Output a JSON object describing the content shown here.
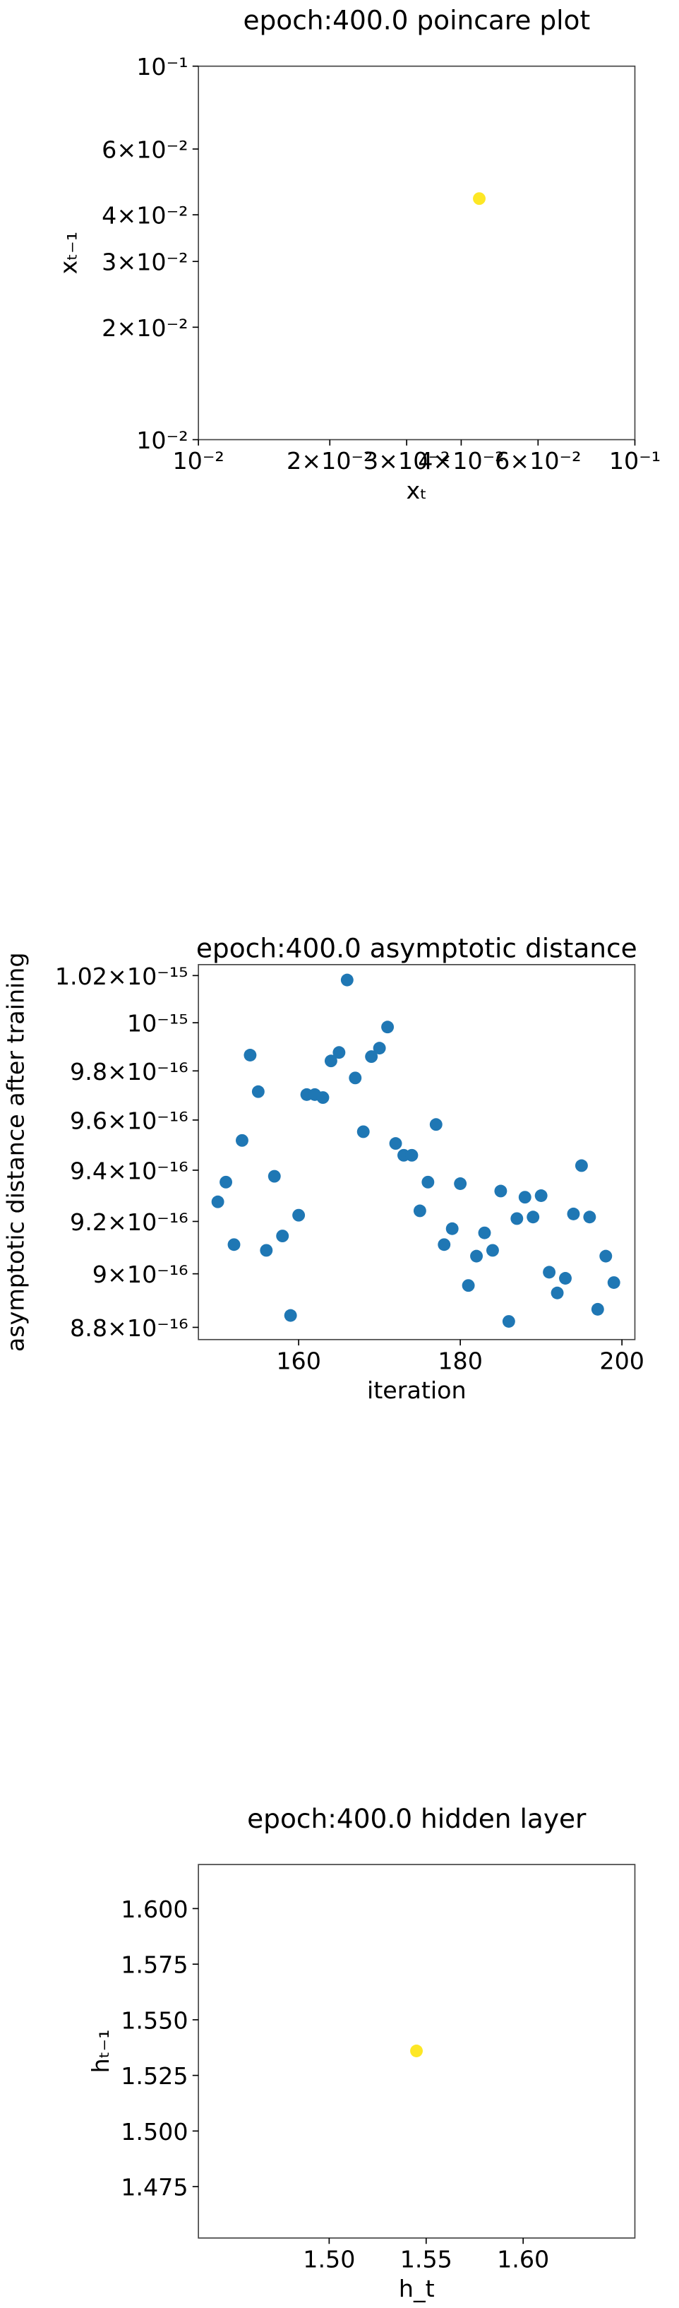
{
  "chart_data": [
    {
      "type": "scatter",
      "title": "epoch:400.0 poincare plot",
      "xlabel": "xₜ",
      "ylabel": "xₜ₋₁",
      "x": [
        0.044
      ],
      "values": [
        0.0442
      ],
      "color": "#fde725",
      "xscale": "log",
      "yscale": "log",
      "xlim": [
        0.01,
        0.1
      ],
      "ylim": [
        0.01,
        0.1
      ],
      "xticks": [
        {
          "value": 0.01,
          "label": "10⁻²"
        },
        {
          "value": 0.02,
          "label": "2×10⁻²"
        },
        {
          "value": 0.03,
          "label": "3×10⁻²"
        },
        {
          "value": 0.04,
          "label": "4×10⁻²"
        },
        {
          "value": 0.06,
          "label": "6×10⁻²"
        },
        {
          "value": 0.1,
          "label": "10⁻¹"
        }
      ],
      "yticks": [
        {
          "value": 0.01,
          "label": "10⁻²"
        },
        {
          "value": 0.02,
          "label": "2×10⁻²"
        },
        {
          "value": 0.03,
          "label": "3×10⁻²"
        },
        {
          "value": 0.04,
          "label": "4×10⁻²"
        },
        {
          "value": 0.06,
          "label": "6×10⁻²"
        },
        {
          "value": 0.1,
          "label": "10⁻¹"
        }
      ]
    },
    {
      "type": "scatter",
      "title": "epoch:400.0 asymptotic distance",
      "xlabel": "iteration",
      "ylabel": "asymptotic distance after training",
      "x": [
        150,
        151,
        152,
        153,
        154,
        155,
        156,
        157,
        158,
        159,
        160,
        161,
        162,
        163,
        164,
        165,
        166,
        167,
        168,
        169,
        170,
        171,
        172,
        173,
        174,
        175,
        176,
        177,
        178,
        179,
        180,
        181,
        182,
        183,
        184,
        185,
        186,
        187,
        188,
        189,
        190,
        191,
        192,
        193,
        194,
        195,
        196,
        197,
        198,
        199
      ],
      "values": [
        9.276e-16,
        9.353e-16,
        9.111e-16,
        9.518e-16,
        9.865e-16,
        9.715e-16,
        9.089e-16,
        9.376e-16,
        9.144e-16,
        8.844e-16,
        9.224e-16,
        9.703e-16,
        9.703e-16,
        9.691e-16,
        9.841e-16,
        9.876e-16,
        1.0181e-15,
        9.771e-16,
        9.553e-16,
        9.859e-16,
        9.894e-16,
        9.982e-16,
        9.506e-16,
        9.459e-16,
        9.459e-16,
        9.241e-16,
        9.353e-16,
        9.582e-16,
        9.111e-16,
        9.172e-16,
        9.347e-16,
        8.956e-16,
        9.067e-16,
        9.156e-16,
        9.089e-16,
        9.318e-16,
        8.822e-16,
        9.211e-16,
        9.294e-16,
        9.217e-16,
        9.3e-16,
        9.006e-16,
        8.928e-16,
        8.983e-16,
        9.229e-16,
        9.418e-16,
        9.217e-16,
        8.867e-16,
        9.067e-16,
        8.967e-16
      ],
      "color": "#1f77b4",
      "yscale": "log",
      "xlim": [
        147.6,
        201.6
      ],
      "ylim": [
        8.755e-16,
        1.0247e-15
      ],
      "xticks": [
        160,
        180,
        200
      ],
      "yticks": [
        {
          "value": 1.02e-15,
          "label": "1.02×10⁻¹⁵"
        },
        {
          "value": 1e-15,
          "label": "10⁻¹⁵"
        },
        {
          "value": 9.8e-16,
          "label": "9.8×10⁻¹⁶"
        },
        {
          "value": 9.6e-16,
          "label": "9.6×10⁻¹⁶"
        },
        {
          "value": 9.4e-16,
          "label": "9.4×10⁻¹⁶"
        },
        {
          "value": 9.2e-16,
          "label": "9.2×10⁻¹⁶"
        },
        {
          "value": 9e-16,
          "label": "9×10⁻¹⁶"
        },
        {
          "value": 8.8e-16,
          "label": "8.8×10⁻¹⁶"
        }
      ]
    },
    {
      "type": "scatter",
      "title": "epoch:400.0 hidden layer",
      "xlabel": "h_t",
      "ylabel": "hₜ₋₁",
      "x": [
        1.545
      ],
      "values": [
        1.536
      ],
      "color": "#fde725",
      "xlim": [
        1.4326,
        1.6576
      ],
      "ylim": [
        1.4519,
        1.6198
      ],
      "xticks": [
        {
          "value": 1.5,
          "label": "1.50"
        },
        {
          "value": 1.55,
          "label": "1.55"
        },
        {
          "value": 1.6,
          "label": "1.60"
        }
      ],
      "yticks": [
        {
          "value": 1.475,
          "label": "1.475"
        },
        {
          "value": 1.5,
          "label": "1.500"
        },
        {
          "value": 1.525,
          "label": "1.525"
        },
        {
          "value": 1.55,
          "label": "1.550"
        },
        {
          "value": 1.575,
          "label": "1.575"
        },
        {
          "value": 1.6,
          "label": "1.600"
        }
      ]
    }
  ]
}
